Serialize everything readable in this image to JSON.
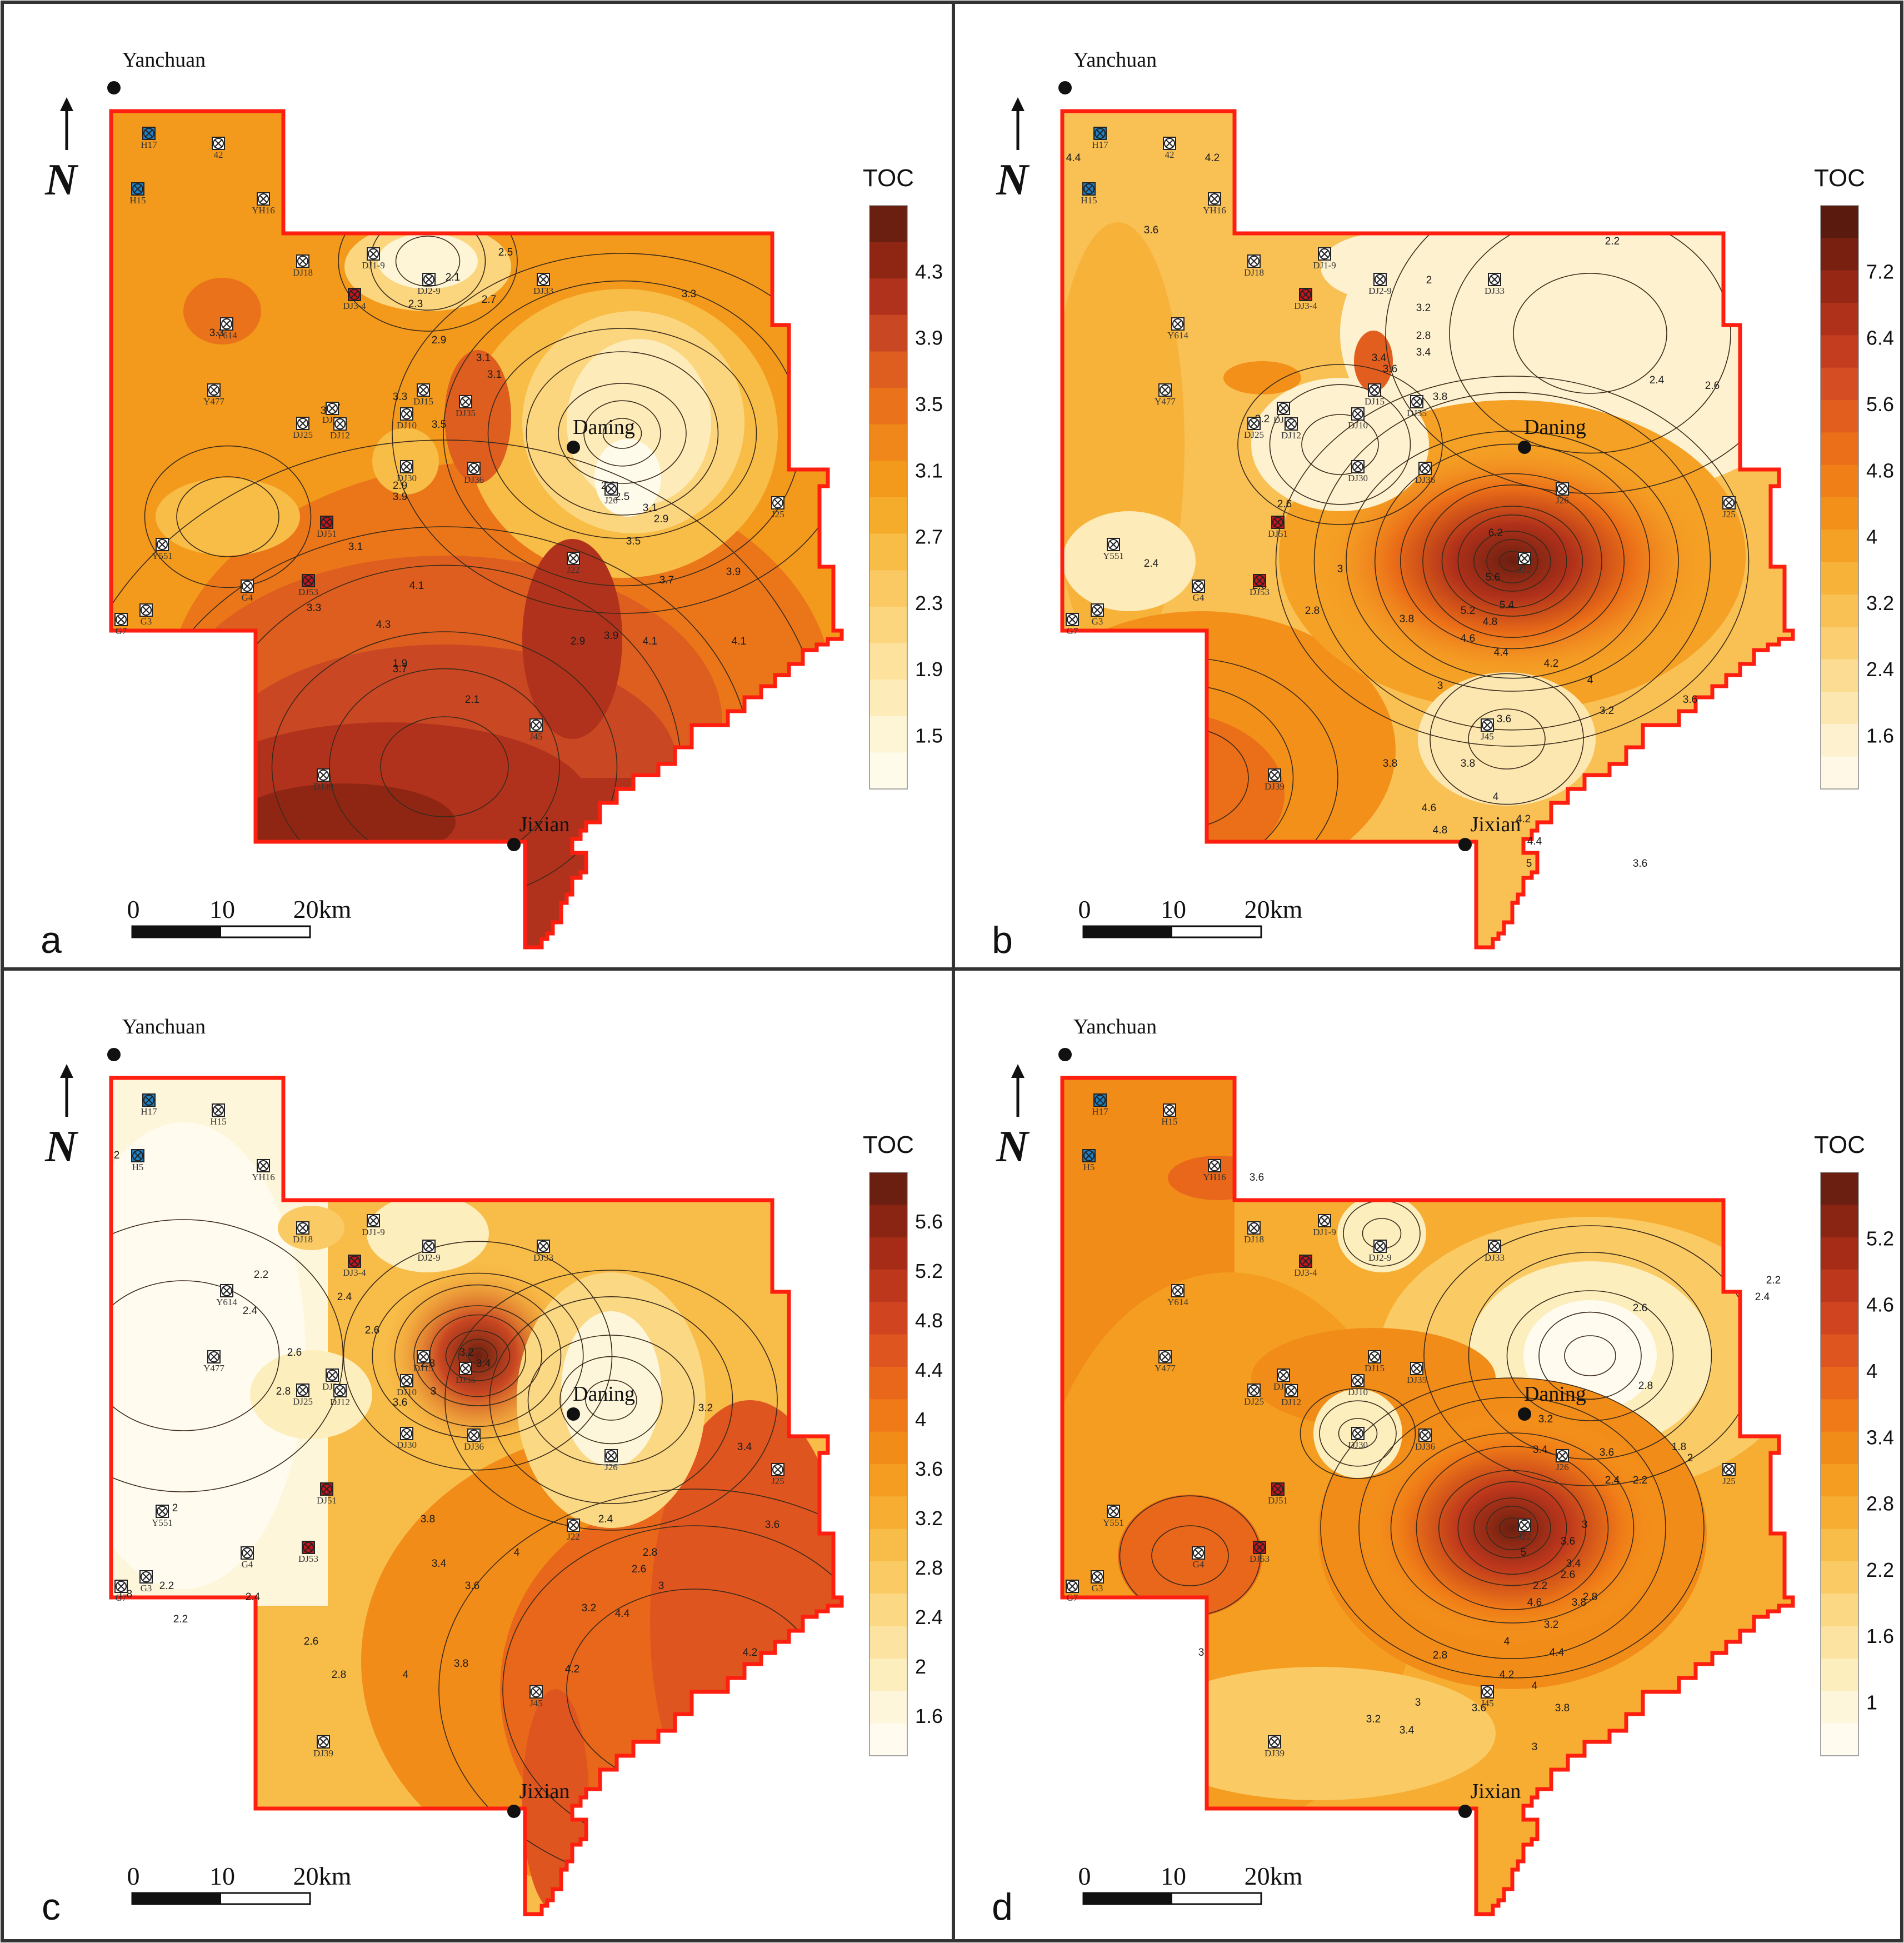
{
  "figure": {
    "panels": [
      {
        "id": "a",
        "letter": "a",
        "legend_title": "TOC",
        "legend_ticks": [
          "4.3",
          "3.9",
          "3.5",
          "3.1",
          "2.7",
          "2.3",
          "1.9",
          "1.5"
        ],
        "legend_colors": [
          "#6b1f10",
          "#8f2614",
          "#b1321c",
          "#c94722",
          "#dd5e1f",
          "#ea721a",
          "#f0871a",
          "#f39a1c",
          "#f6ac2b",
          "#f8bd47",
          "#fac963",
          "#fbd67f",
          "#fce29c",
          "#fdecb9",
          "#fef5d6",
          "#fffbea"
        ],
        "cities": [
          {
            "name": "Yanchuan"
          },
          {
            "name": "Daning"
          },
          {
            "name": "Jixian"
          }
        ],
        "wells": [
          "H17",
          "H15",
          "42",
          "YH16",
          "DJ18",
          "DJ1-9",
          "DJ2-9",
          "DJ3-4",
          "DJ33",
          "Y614",
          "Y477",
          "DJ25",
          "DJ20",
          "DJ12",
          "DJ10",
          "DJ15",
          "DJ35",
          "DJ30",
          "DJ36",
          "J26",
          "J25",
          "J22",
          "Y551",
          "DJ51",
          "DJ53",
          "G4",
          "G7",
          "G3",
          "J45",
          "DJ39"
        ],
        "contour_labels": [
          "3.3",
          "2.5",
          "2.1",
          "2.3",
          "2.7",
          "2.9",
          "3.1",
          "3.3",
          "3.5",
          "3.7",
          "3.9",
          "4.1",
          "4.3",
          "1.9",
          "2.1",
          "2.3",
          "2.5",
          "2.9",
          "3.1",
          "3.3",
          "3.5",
          "3.7",
          "3.9",
          "4.1",
          "2.9",
          "3.1",
          "3.3",
          "3.7",
          "3.9",
          "4.1",
          "3.4",
          "3.1",
          "2.9"
        ],
        "scale": {
          "t0": "0",
          "t1": "10",
          "t2": "20km"
        }
      },
      {
        "id": "b",
        "letter": "b",
        "legend_title": "TOC",
        "legend_ticks": [
          "7.2",
          "6.4",
          "5.6",
          "4.8",
          "4",
          "3.2",
          "2.4",
          "1.6"
        ],
        "legend_colors": [
          "#5a1a0e",
          "#7a2011",
          "#962715",
          "#b0311a",
          "#c43d1f",
          "#d54d22",
          "#e15e1e",
          "#eb6e18",
          "#f07f17",
          "#f39019",
          "#f5a125",
          "#f7b23a",
          "#f9c054",
          "#fbce71",
          "#fcdc92",
          "#fde7b1",
          "#fef1cf",
          "#fff8e7"
        ],
        "cities": [
          {
            "name": "Yanchuan"
          },
          {
            "name": "Daning"
          },
          {
            "name": "Jixian"
          }
        ],
        "wells": [
          "H17",
          "H15",
          "42",
          "YH16",
          "DJ18",
          "DJ1-9",
          "DJ2-9",
          "DJ3-4",
          "DJ33",
          "Y614",
          "Y477",
          "DJ25",
          "DJ20",
          "DJ12",
          "DJ10",
          "DJ15",
          "DJ35",
          "DJ30",
          "DJ36",
          "J26",
          "J25",
          "J22",
          "Y551",
          "DJ51",
          "DJ53",
          "G4",
          "G7",
          "G3",
          "J45",
          "DJ39"
        ],
        "contour_labels": [
          "4.4",
          "4.2",
          "3.6",
          "2.2",
          "2.4",
          "2.6",
          "2.8",
          "3.4",
          "3.6",
          "3.8",
          "3.2",
          "2.6",
          "2.4",
          "3.2",
          "3.4",
          "2.6",
          "6.2",
          "5.6",
          "5.4",
          "5.2",
          "4.8",
          "4.6",
          "4.4",
          "4.2",
          "4",
          "3.8",
          "3.6",
          "3.2",
          "3",
          "3.6",
          "3.8",
          "4",
          "4.2",
          "4.4",
          "4.6",
          "4.8",
          "5",
          "3.8",
          "3.6",
          "2.8",
          "3",
          "2"
        ],
        "scale": {
          "t0": "0",
          "t1": "10",
          "t2": "20km"
        }
      },
      {
        "id": "c",
        "letter": "c",
        "legend_title": "TOC",
        "legend_ticks": [
          "5.6",
          "5.2",
          "4.8",
          "4.4",
          "4",
          "3.6",
          "3.2",
          "2.8",
          "2.4",
          "2",
          "1.6"
        ],
        "legend_colors": [
          "#6b1f10",
          "#8a2413",
          "#a62c17",
          "#bd371c",
          "#d0441f",
          "#df551f",
          "#e9671a",
          "#ef7a17",
          "#f28c18",
          "#f49d20",
          "#f6ad31",
          "#f8bc49",
          "#facb65",
          "#fbd883",
          "#fce3a1",
          "#fdeebe",
          "#fef6db",
          "#fffbee"
        ],
        "cities": [
          {
            "name": "Yanchuan"
          },
          {
            "name": "Daning"
          },
          {
            "name": "Jixian"
          }
        ],
        "wells": [
          "H17",
          "H5",
          "H15",
          "YH16",
          "DJ18",
          "DJ1-9",
          "DJ2-9",
          "DJ3-4",
          "DJ33",
          "Y614",
          "Y477",
          "DJ25",
          "DJ20",
          "DJ12",
          "DJ10",
          "DJ15",
          "DJ35",
          "DJ30",
          "DJ36",
          "J26",
          "J25",
          "J22",
          "Y551",
          "DJ51",
          "DJ53",
          "G4",
          "G7",
          "G3",
          "J45",
          "DJ39"
        ],
        "contour_labels": [
          "2",
          "2.2",
          "2.4",
          "2.6",
          "2.8",
          "1.8",
          "2",
          "2.2",
          "2.4",
          "2.6",
          "2.8",
          "3",
          "3.2",
          "3.4",
          "3.6",
          "3.8",
          "4",
          "4.2",
          "4.4",
          "3.2",
          "3.4",
          "3.6",
          "2.4",
          "2.6",
          "2.8",
          "3",
          "3.2",
          "3.4",
          "3.6",
          "3.8",
          "4",
          "4.2",
          "2.2",
          "2.4",
          "2.6",
          "2.8"
        ],
        "scale": {
          "t0": "0",
          "t1": "10",
          "t2": "20km"
        }
      },
      {
        "id": "d",
        "letter": "d",
        "legend_title": "TOC",
        "legend_ticks": [
          "5.2",
          "4.6",
          "4",
          "3.4",
          "2.8",
          "2.2",
          "1.6",
          "1"
        ],
        "legend_colors": [
          "#6b1f10",
          "#8a2413",
          "#a62c17",
          "#bd371c",
          "#d0441f",
          "#df551f",
          "#e9671a",
          "#ef7a17",
          "#f28c18",
          "#f49d20",
          "#f6ad31",
          "#f8bc49",
          "#facb65",
          "#fbd883",
          "#fce3a1",
          "#fdeebe",
          "#fef6db",
          "#fffbee"
        ],
        "cities": [
          {
            "name": "Yanchuan"
          },
          {
            "name": "Daning"
          },
          {
            "name": "Jixian"
          }
        ],
        "wells": [
          "H17",
          "H5",
          "H15",
          "YH16",
          "DJ18",
          "DJ1-9",
          "DJ2-9",
          "DJ3-4",
          "DJ33",
          "Y614",
          "Y477",
          "DJ25",
          "DJ20",
          "DJ12",
          "DJ10",
          "DJ15",
          "DJ35",
          "DJ30",
          "DJ36",
          "J26",
          "J25",
          "J22",
          "Y551",
          "DJ51",
          "DJ53",
          "G4",
          "G7",
          "G3",
          "J45",
          "DJ39"
        ],
        "contour_labels": [
          "3.6",
          "3",
          "2.2",
          "2.4",
          "2.6",
          "2.8",
          "3.2",
          "3.4",
          "3.6",
          "2.2",
          "2.6",
          "2.8",
          "1.8",
          "2",
          "2.2",
          "2.4",
          "3",
          "3.2",
          "3.4",
          "3.6",
          "3.8",
          "4",
          "4.2",
          "4.4",
          "4.6",
          "5",
          "2.8",
          "3",
          "3.2",
          "3.4",
          "3.6",
          "3.8",
          "4",
          "3"
        ],
        "scale": {
          "t0": "0",
          "t1": "10",
          "t2": "20km"
        }
      }
    ]
  }
}
